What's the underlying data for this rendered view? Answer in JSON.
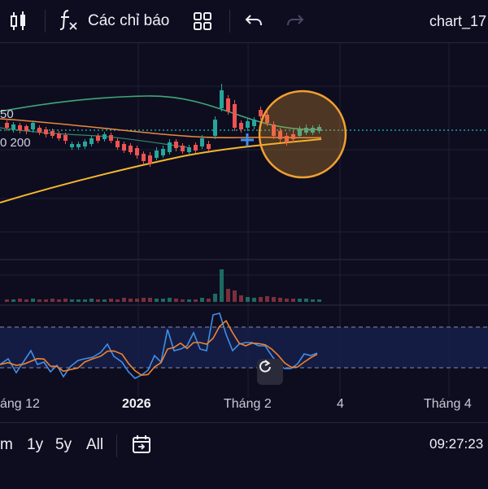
{
  "toolbar": {
    "indicators_label": "Các chỉ báo",
    "title": "chart_17",
    "icons": [
      "candlestick-icon",
      "function-icon",
      "layout-grid-icon",
      "undo-icon",
      "redo-icon"
    ]
  },
  "ma_labels": {
    "ma50": "50",
    "ma200": "0 200"
  },
  "time_axis": {
    "ticks": [
      "áng 12",
      "2026",
      "Tháng 2",
      "4",
      "Tháng 4"
    ]
  },
  "bottom_bar": {
    "ranges": [
      "m",
      "1y",
      "5y",
      "All"
    ],
    "clock": "09:27:23"
  },
  "colors": {
    "background": "#0e0d20",
    "up": "#26a69a",
    "down": "#ef5350",
    "ma_green": "#3fa877",
    "ma_orange": "#e98a3a",
    "ma_yellow": "#f5b82a",
    "highlight_circle": "#f0a030",
    "stoch_k": "#3f8fe8",
    "stoch_d": "#f0832f",
    "price_line": "#19c3b0"
  }
}
